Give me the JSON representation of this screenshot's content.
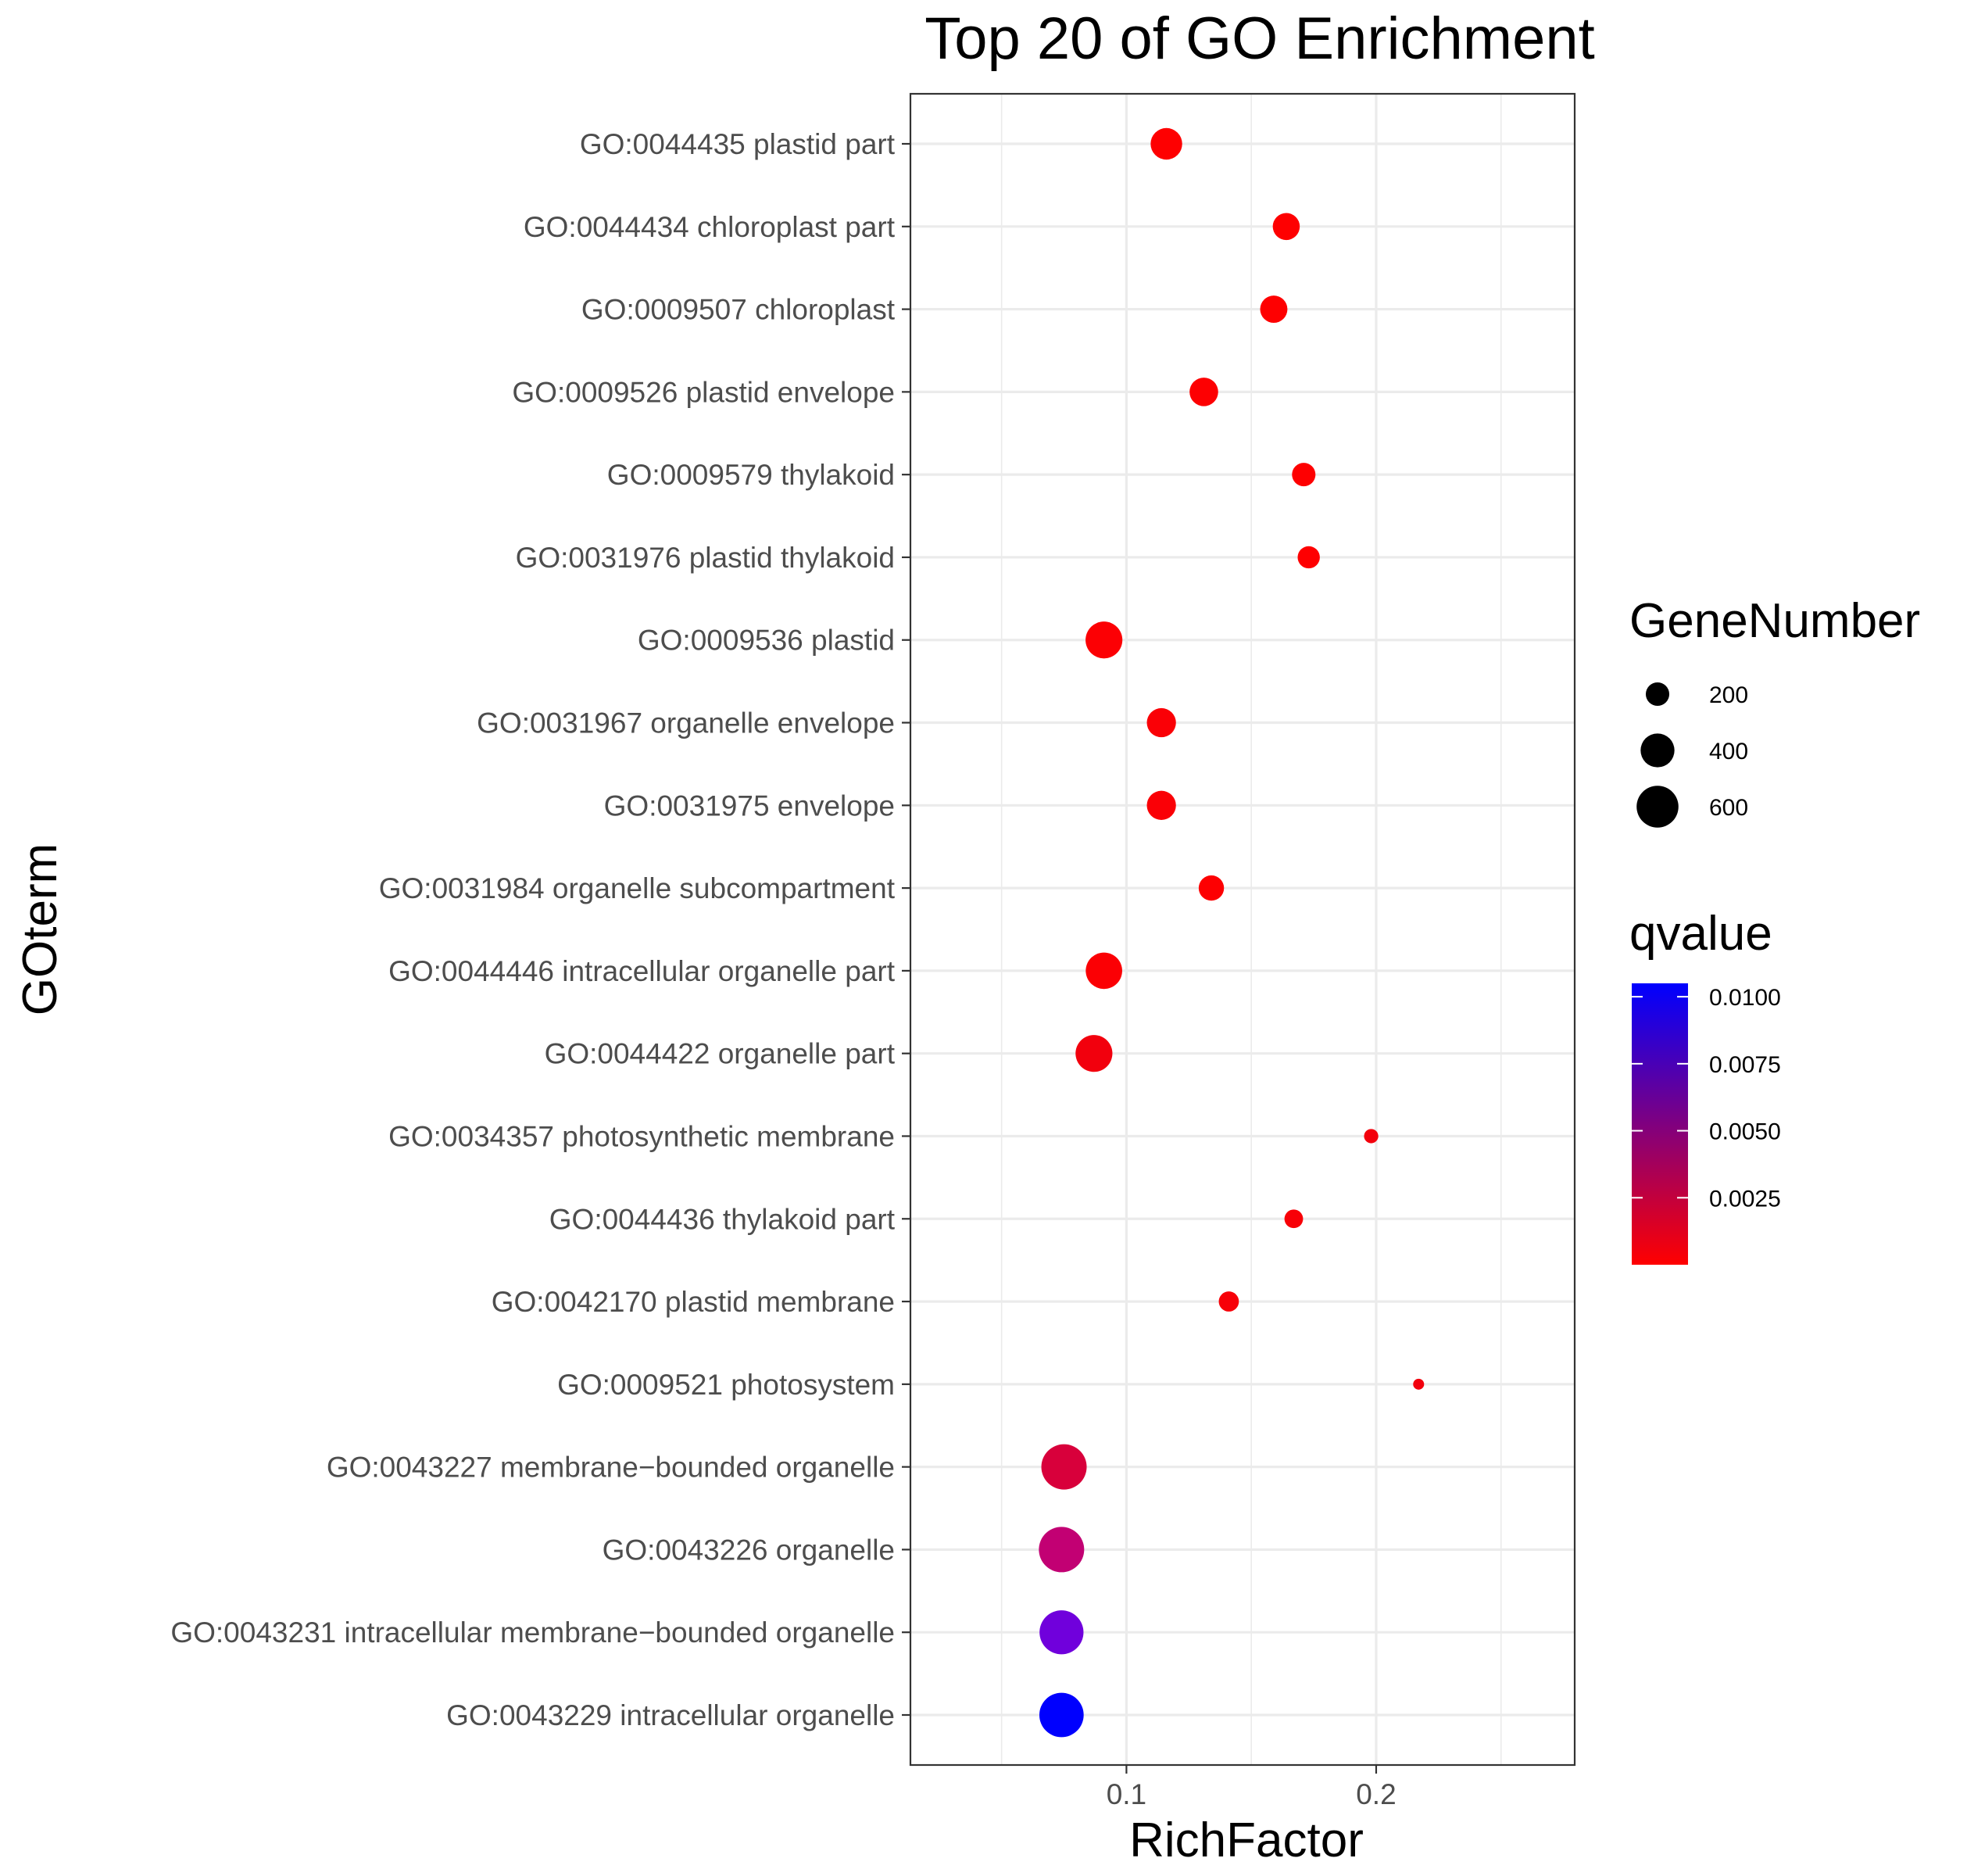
{
  "chart_data": {
    "type": "scatter",
    "title": "Top 20 of GO Enrichment",
    "xlabel": "RichFactor",
    "ylabel": "GOterm",
    "xlim": [
      0.0135,
      0.2795
    ],
    "x_ticks": [
      {
        "value": 0.1,
        "label": "0.1"
      },
      {
        "value": 0.2,
        "label": "0.2"
      }
    ],
    "grid": true,
    "legend_position": "right",
    "size_legend": {
      "title": "GeneNumber",
      "entries": [
        {
          "value": 200,
          "label": "200"
        },
        {
          "value": 400,
          "label": "400"
        },
        {
          "value": 600,
          "label": "600"
        }
      ]
    },
    "color_legend": {
      "title": "qvalue",
      "low_color": "#ff0000",
      "high_color": "#0000ff",
      "range": [
        0.0,
        0.0105
      ],
      "ticks": [
        {
          "value": 0.01,
          "label": "0.0100"
        },
        {
          "value": 0.0075,
          "label": "0.0075"
        },
        {
          "value": 0.005,
          "label": "0.0050"
        },
        {
          "value": 0.0025,
          "label": "0.0025"
        }
      ]
    },
    "points": [
      {
        "term": "GO:0044435 plastid part",
        "richFactor": 0.116,
        "geneNumber": 350,
        "qvalue": 0.0002,
        "color": "#fe0001"
      },
      {
        "term": "GO:0044434 chloroplast part",
        "richFactor": 0.164,
        "geneNumber": 260,
        "qvalue": 0.0002,
        "color": "#fe0001"
      },
      {
        "term": "GO:0009507 chloroplast",
        "richFactor": 0.159,
        "geneNumber": 265,
        "qvalue": 0.0002,
        "color": "#fe0001"
      },
      {
        "term": "GO:0009526 plastid envelope",
        "richFactor": 0.131,
        "geneNumber": 290,
        "qvalue": 0.0003,
        "color": "#fd0002"
      },
      {
        "term": "GO:0009579 thylakoid",
        "richFactor": 0.171,
        "geneNumber": 200,
        "qvalue": 0.0002,
        "color": "#fe0001"
      },
      {
        "term": "GO:0031976 plastid thylakoid",
        "richFactor": 0.173,
        "geneNumber": 180,
        "qvalue": 0.0002,
        "color": "#fe0001"
      },
      {
        "term": "GO:0009536 plastid",
        "richFactor": 0.091,
        "geneNumber": 470,
        "qvalue": 0.0006,
        "color": "#fc0004"
      },
      {
        "term": "GO:0031967 organelle envelope",
        "richFactor": 0.114,
        "geneNumber": 300,
        "qvalue": 0.0007,
        "color": "#fa0006"
      },
      {
        "term": "GO:0031975 envelope",
        "richFactor": 0.114,
        "geneNumber": 300,
        "qvalue": 0.0007,
        "color": "#fa0006"
      },
      {
        "term": "GO:0031984 organelle subcompartment",
        "richFactor": 0.134,
        "geneNumber": 230,
        "qvalue": 0.0003,
        "color": "#fd0002"
      },
      {
        "term": "GO:0044446 intracellular organelle part",
        "richFactor": 0.091,
        "geneNumber": 460,
        "qvalue": 0.0006,
        "color": "#fb0004"
      },
      {
        "term": "GO:0044422 organelle part",
        "richFactor": 0.087,
        "geneNumber": 470,
        "qvalue": 0.0016,
        "color": "#f2000d"
      },
      {
        "term": "GO:0034357 photosynthetic membrane",
        "richFactor": 0.198,
        "geneNumber": 80,
        "qvalue": 0.0015,
        "color": "#f3000c"
      },
      {
        "term": "GO:0044436 thylakoid part",
        "richFactor": 0.167,
        "geneNumber": 130,
        "qvalue": 0.0008,
        "color": "#f80007"
      },
      {
        "term": "GO:0042170 plastid membrane",
        "richFactor": 0.141,
        "geneNumber": 150,
        "qvalue": 0.001,
        "color": "#f70008"
      },
      {
        "term": "GO:0009521 photosystem",
        "richFactor": 0.217,
        "geneNumber": 50,
        "qvalue": 0.0015,
        "color": "#f2000d"
      },
      {
        "term": "GO:0043227 membrane−bounded organelle",
        "richFactor": 0.075,
        "geneNumber": 700,
        "qvalue": 0.0051,
        "color": "#d8003b"
      },
      {
        "term": "GO:0043226 organelle",
        "richFactor": 0.074,
        "geneNumber": 700,
        "qvalue": 0.0068,
        "color": "#c20073"
      },
      {
        "term": "GO:0043231 intracellular membrane−bounded organelle",
        "richFactor": 0.074,
        "geneNumber": 660,
        "qvalue": 0.0088,
        "color": "#7000dc"
      },
      {
        "term": "GO:0043229 intracellular organelle",
        "richFactor": 0.074,
        "geneNumber": 670,
        "qvalue": 0.0105,
        "color": "#0000fe"
      }
    ]
  }
}
